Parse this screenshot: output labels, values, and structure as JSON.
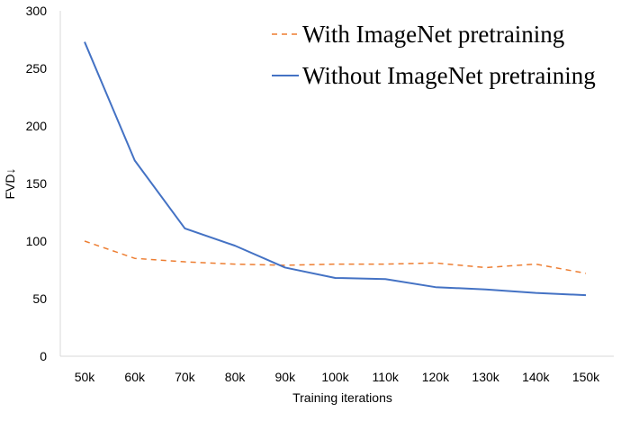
{
  "chart_data": {
    "type": "line",
    "title": "",
    "xlabel": "Training iterations",
    "ylabel": "FVD↓",
    "categories": [
      "50k",
      "60k",
      "70k",
      "80k",
      "90k",
      "100k",
      "110k",
      "120k",
      "130k",
      "140k",
      "150k"
    ],
    "ylim": [
      0,
      300
    ],
    "yticks": [
      0,
      50,
      100,
      150,
      200,
      250,
      300
    ],
    "grid": false,
    "legend_position": "top-right",
    "series": [
      {
        "name": "With ImageNet pretraining",
        "style": "dashed",
        "color": "#ED7D31",
        "values": [
          100,
          85,
          82,
          80,
          79,
          80,
          80,
          81,
          77,
          80,
          72
        ]
      },
      {
        "name": "Without ImageNet pretraining",
        "style": "solid",
        "color": "#4472C4",
        "values": [
          273,
          170,
          111,
          96,
          77,
          68,
          67,
          60,
          58,
          55,
          53
        ]
      }
    ]
  }
}
